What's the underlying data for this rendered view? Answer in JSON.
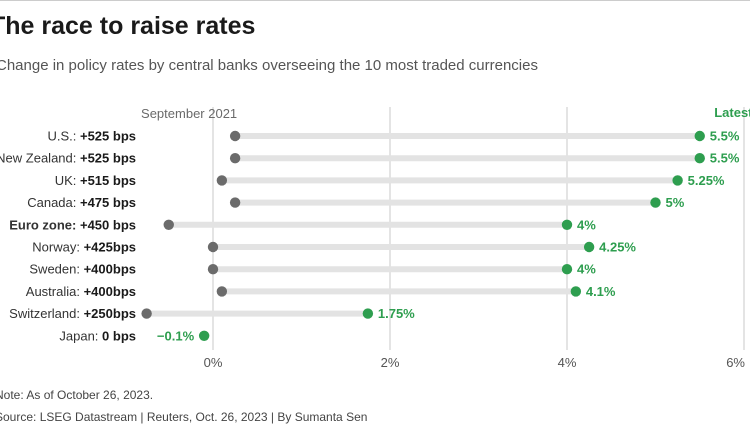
{
  "header": {
    "title": "The race to raise rates",
    "subtitle": "Change in policy rates by central banks overseeing the 10 most traded currencies"
  },
  "chart_data": {
    "type": "dumbbell",
    "start_label": "September 2021",
    "end_label": "Latest",
    "x_ticks": [
      0,
      2,
      4,
      6
    ],
    "x_tick_labels": [
      "0%",
      "2%",
      "4%",
      "6%"
    ],
    "xlim": [
      -2.43,
      6.0
    ],
    "colors": {
      "start": "#6b6b6b",
      "end": "#2e9e4f",
      "bar": "#e3e3e3",
      "grid": "#c8c8c8"
    },
    "rows": [
      {
        "name": "U.S.:",
        "change": "+525 bps",
        "start": 0.25,
        "end": 5.5,
        "end_label": "5.5%",
        "bold_name": false
      },
      {
        "name": "New Zealand:",
        "change": "+525 bps",
        "start": 0.25,
        "end": 5.5,
        "end_label": "5.5%",
        "bold_name": false
      },
      {
        "name": "UK:",
        "change": "+515 bps",
        "start": 0.1,
        "end": 5.25,
        "end_label": "5.25%",
        "bold_name": false
      },
      {
        "name": "Canada:",
        "change": "+475 bps",
        "start": 0.25,
        "end": 5.0,
        "end_label": "5%",
        "bold_name": false
      },
      {
        "name": "Euro zone:",
        "change": "+450 bps",
        "start": -0.5,
        "end": 4.0,
        "end_label": "4%",
        "bold_name": true
      },
      {
        "name": "Norway:",
        "change": "+425bps",
        "start": 0.0,
        "end": 4.25,
        "end_label": "4.25%",
        "bold_name": false
      },
      {
        "name": "Sweden:",
        "change": "+400bps",
        "start": 0.0,
        "end": 4.0,
        "end_label": "4%",
        "bold_name": false
      },
      {
        "name": "Australia:",
        "change": "+400bps",
        "start": 0.1,
        "end": 4.1,
        "end_label": "4.1%",
        "bold_name": false
      },
      {
        "name": "Switzerland:",
        "change": "+250bps",
        "start": -0.75,
        "end": 1.75,
        "end_label": "1.75%",
        "bold_name": false
      },
      {
        "name": "Japan:",
        "change": "0 bps",
        "start": -0.1,
        "end": -0.1,
        "end_label": "−0.1%",
        "bold_name": false
      }
    ]
  },
  "footer": {
    "note": "Note: As of October 26, 2023.",
    "source": "Source: LSEG Datastream | Reuters, Oct. 26, 2023 | By Sumanta Sen"
  }
}
